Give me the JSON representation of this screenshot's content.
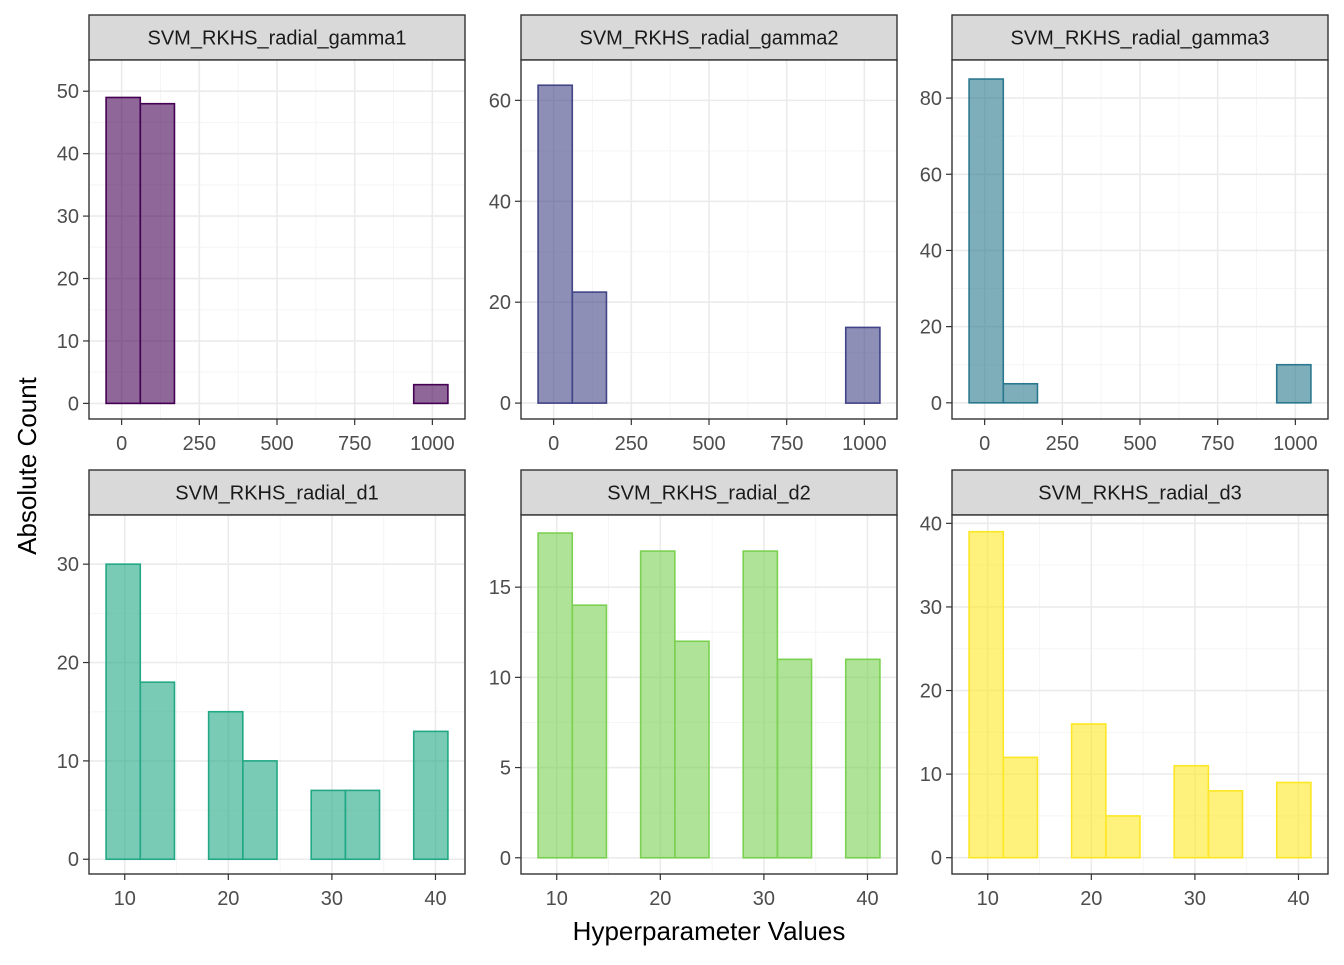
{
  "figure": {
    "xlabel": "Hyperparameter Values",
    "ylabel": "Absolute Count",
    "colors": {
      "panel_border": "#333333",
      "grid_major": "#ebebeb",
      "grid_minor": "#f5f5f5",
      "strip_fill": "#d9d9d9",
      "tick_text": "#4d4d4d",
      "axis_title": "#000000"
    }
  },
  "chart_data": [
    {
      "type": "bar",
      "title": "SVM_RKHS_radial_gamma1",
      "fill": "#440154",
      "stroke": "#440154",
      "bin_edges": [
        -50,
        60,
        170,
        280,
        390,
        500,
        610,
        720,
        830,
        940,
        1050
      ],
      "counts": [
        49,
        48,
        0,
        0,
        0,
        0,
        0,
        0,
        0,
        3
      ],
      "xlim": [
        -105,
        1105
      ],
      "ylim": [
        -2.5,
        55
      ],
      "xticks": [
        0,
        250,
        500,
        750,
        1000
      ],
      "yticks": [
        0,
        10,
        20,
        30,
        40,
        50
      ],
      "grid": true
    },
    {
      "type": "bar",
      "title": "SVM_RKHS_radial_gamma2",
      "fill": "#414487",
      "stroke": "#414487",
      "bin_edges": [
        -50,
        60,
        170,
        280,
        390,
        500,
        610,
        720,
        830,
        940,
        1050
      ],
      "counts": [
        63,
        22,
        0,
        0,
        0,
        0,
        0,
        0,
        0,
        15
      ],
      "xlim": [
        -105,
        1105
      ],
      "ylim": [
        -3.15,
        68
      ],
      "xticks": [
        0,
        250,
        500,
        750,
        1000
      ],
      "yticks": [
        0,
        20,
        40,
        60
      ],
      "grid": true
    },
    {
      "type": "bar",
      "title": "SVM_RKHS_radial_gamma3",
      "fill": "#2a788e",
      "stroke": "#2a788e",
      "bin_edges": [
        -50,
        60,
        170,
        280,
        390,
        500,
        610,
        720,
        830,
        940,
        1050
      ],
      "counts": [
        85,
        5,
        0,
        0,
        0,
        0,
        0,
        0,
        0,
        10
      ],
      "xlim": [
        -105,
        1105
      ],
      "ylim": [
        -4.25,
        90
      ],
      "xticks": [
        0,
        250,
        500,
        750,
        1000
      ],
      "yticks": [
        0,
        20,
        40,
        60,
        80
      ],
      "grid": true
    },
    {
      "type": "bar",
      "title": "SVM_RKHS_radial_d1",
      "fill": "#22a884",
      "stroke": "#22a884",
      "bin_edges": [
        8.2,
        11.5,
        14.8,
        18.1,
        21.4,
        24.7,
        28.0,
        31.3,
        34.6,
        37.9,
        41.2
      ],
      "counts": [
        30,
        18,
        0,
        15,
        10,
        0,
        7,
        7,
        0,
        13
      ],
      "xlim": [
        6.55,
        42.85
      ],
      "ylim": [
        -1.5,
        35
      ],
      "xticks": [
        10,
        20,
        30,
        40
      ],
      "yticks": [
        0,
        10,
        20,
        30
      ],
      "grid": true
    },
    {
      "type": "bar",
      "title": "SVM_RKHS_radial_d2",
      "fill": "#7ad151",
      "stroke": "#7ad151",
      "bin_edges": [
        8.2,
        11.5,
        14.8,
        18.1,
        21.4,
        24.7,
        28.0,
        31.3,
        34.6,
        37.9,
        41.2
      ],
      "counts": [
        18,
        14,
        0,
        17,
        12,
        0,
        17,
        11,
        0,
        11
      ],
      "xlim": [
        6.55,
        42.85
      ],
      "ylim": [
        -0.9,
        19
      ],
      "xticks": [
        10,
        20,
        30,
        40
      ],
      "yticks": [
        0,
        5,
        10,
        15
      ],
      "grid": true
    },
    {
      "type": "bar",
      "title": "SVM_RKHS_radial_d3",
      "fill": "#fde725",
      "stroke": "#fde725",
      "bin_edges": [
        8.2,
        11.5,
        14.8,
        18.1,
        21.4,
        24.7,
        28.0,
        31.3,
        34.6,
        37.9,
        41.2
      ],
      "counts": [
        39,
        12,
        0,
        16,
        5,
        0,
        11,
        8,
        0,
        9
      ],
      "xlim": [
        6.55,
        42.85
      ],
      "ylim": [
        -1.95,
        41
      ],
      "xticks": [
        10,
        20,
        30,
        40
      ],
      "yticks": [
        0,
        10,
        20,
        30,
        40
      ],
      "grid": true
    }
  ]
}
